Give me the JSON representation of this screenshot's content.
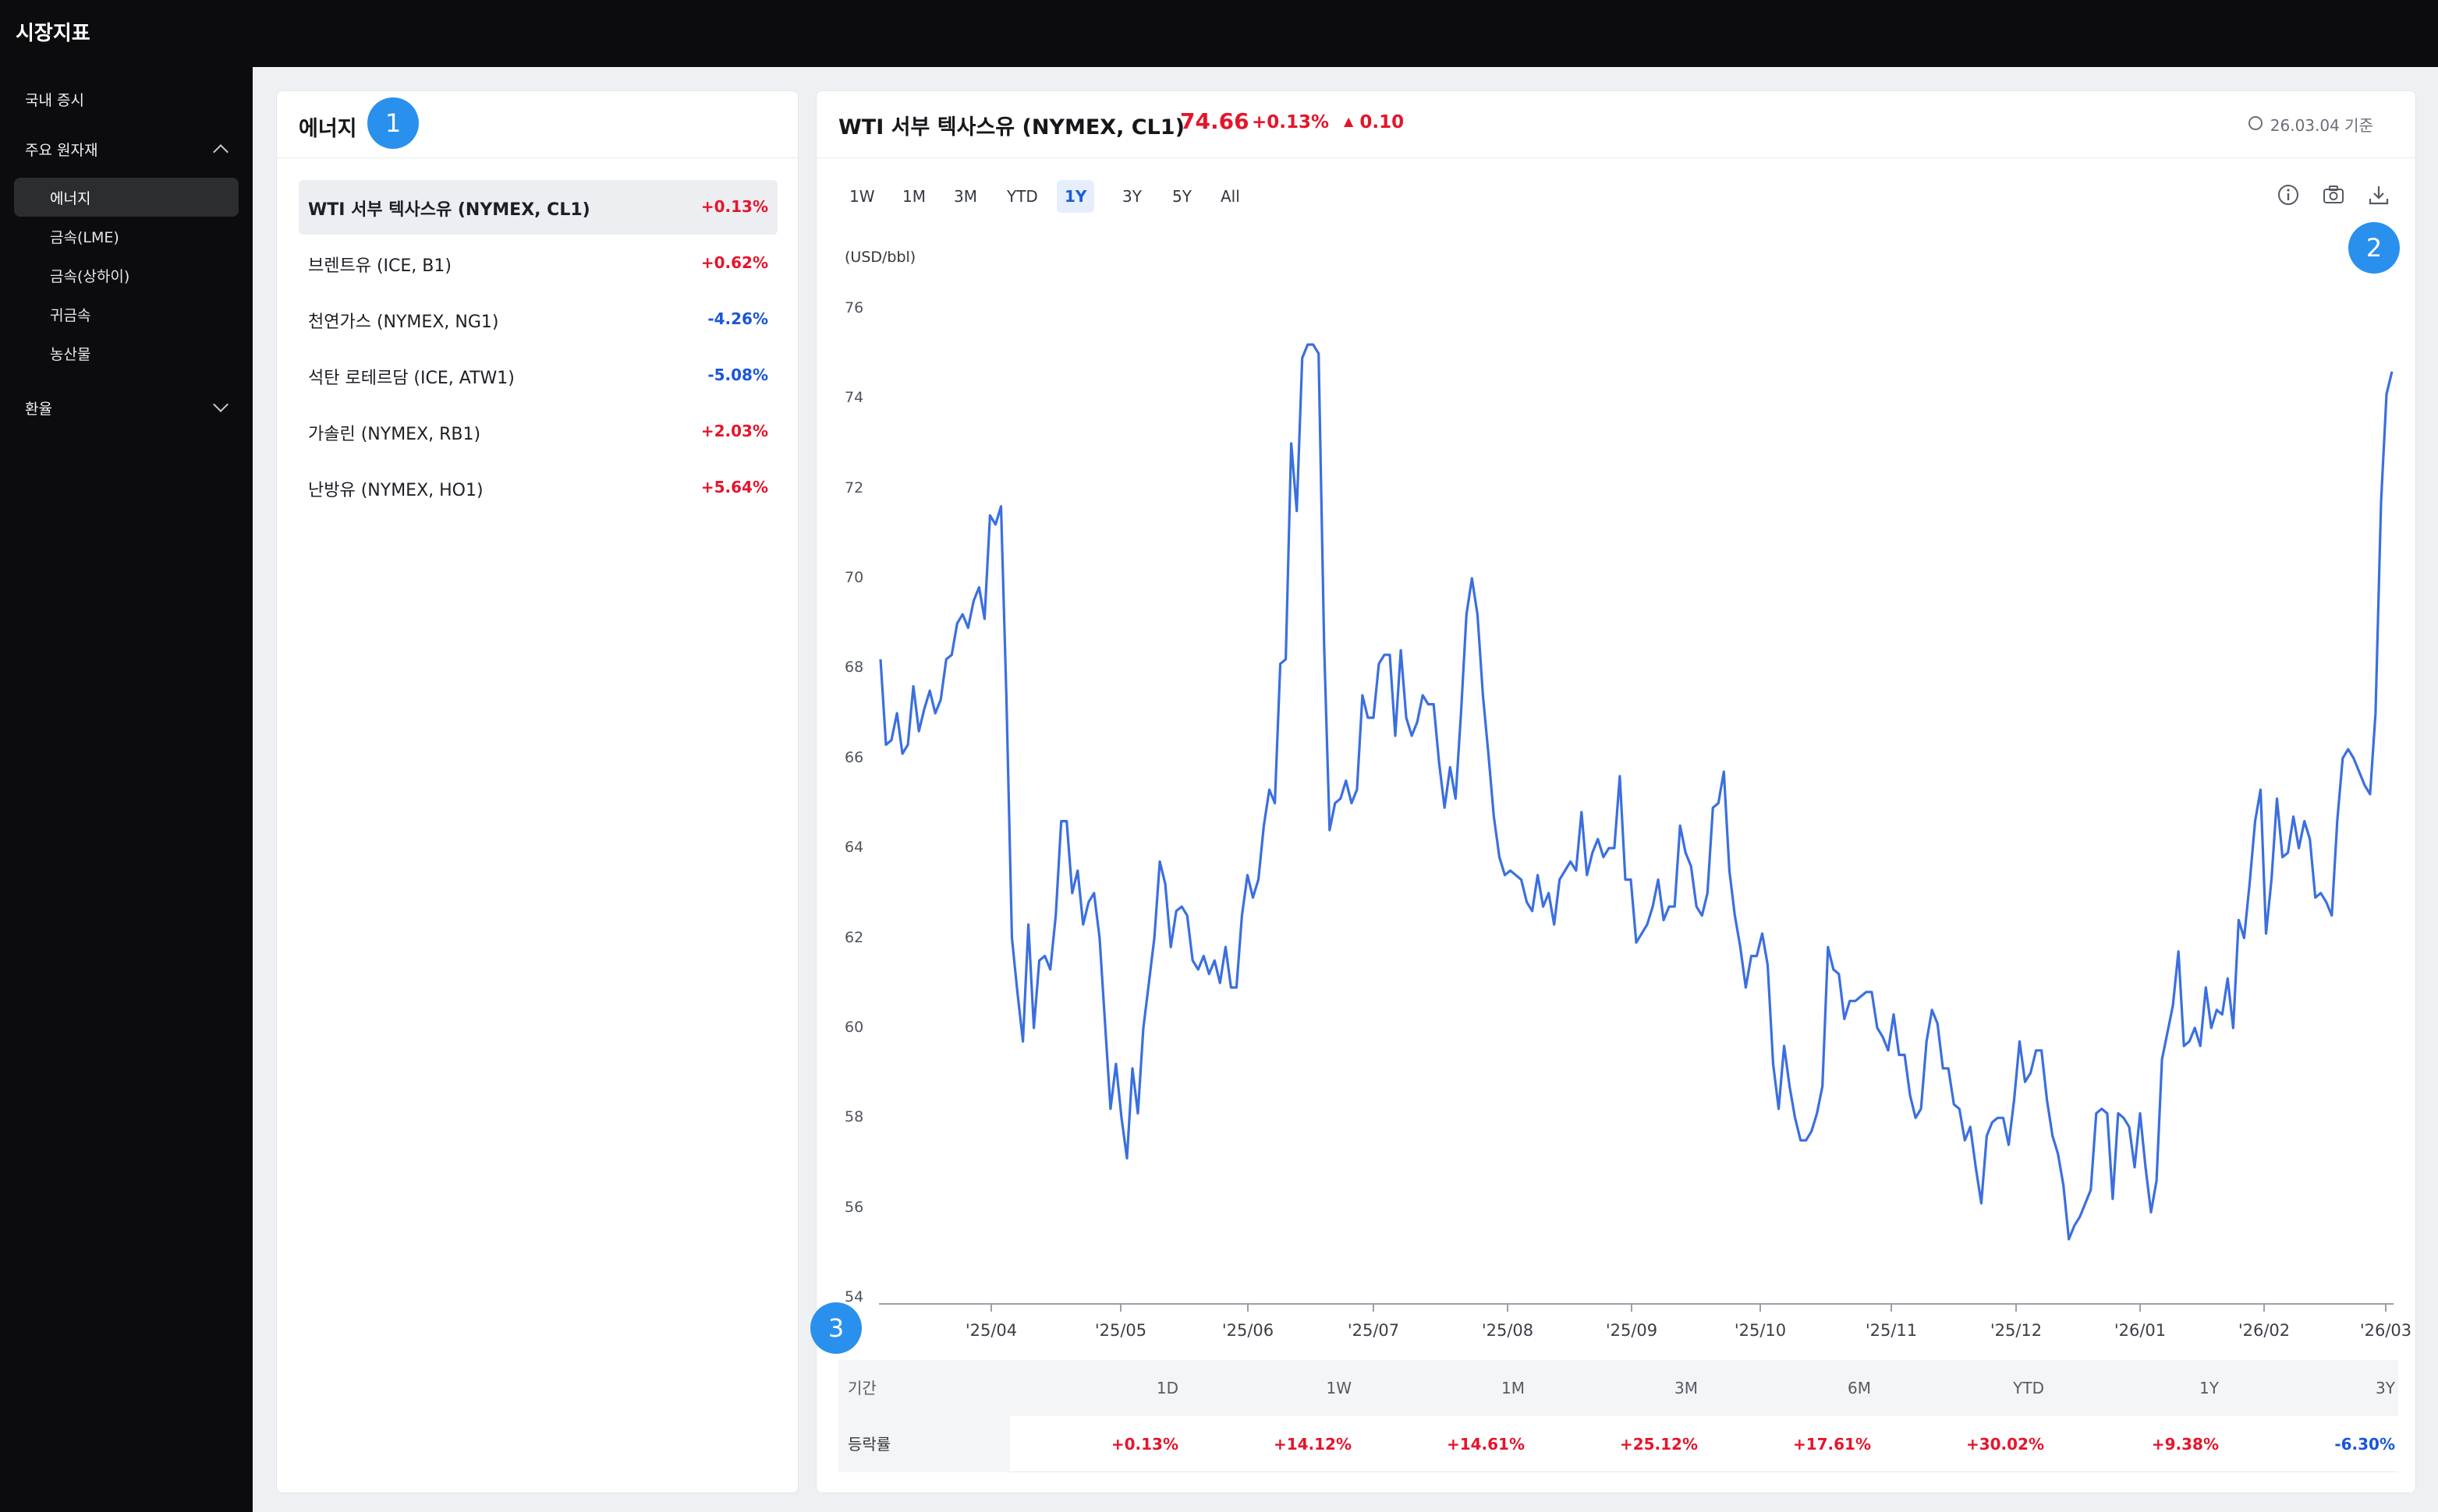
{
  "app": {
    "title": "시장지표"
  },
  "sidebar": {
    "items": [
      {
        "label": "국내 증시"
      },
      {
        "label": "주요 원자재",
        "children": [
          "에너지",
          "금속(LME)",
          "금속(상하이)",
          "귀금속",
          "농산물"
        ]
      },
      {
        "label": "환율"
      }
    ]
  },
  "energy_panel": {
    "title": "에너지",
    "items": [
      {
        "name": "WTI 서부 텍사스유 (NYMEX, CL1)",
        "change": "+0.13%",
        "dir": "up"
      },
      {
        "name": "브렌트유 (ICE, B1)",
        "change": "+0.62%",
        "dir": "up"
      },
      {
        "name": "천연가스 (NYMEX, NG1)",
        "change": "-4.26%",
        "dir": "down"
      },
      {
        "name": "석탄 로테르담 (ICE, ATW1)",
        "change": "-5.08%",
        "dir": "down"
      },
      {
        "name": "가솔린 (NYMEX, RB1)",
        "change": "+2.03%",
        "dir": "up"
      },
      {
        "name": "난방유 (NYMEX, HO1)",
        "change": "+5.64%",
        "dir": "up"
      }
    ]
  },
  "chart_header": {
    "title": "WTI 서부 텍사스유 (NYMEX, CL1)",
    "price": "74.66",
    "pct": "+0.13%",
    "delta": "0.10",
    "asof": "26.03.04 기준"
  },
  "ranges": [
    "1W",
    "1M",
    "3M",
    "YTD",
    "1Y",
    "3Y",
    "5Y",
    "All"
  ],
  "active_range": "1Y",
  "markers": [
    "1",
    "2",
    "3"
  ],
  "icons": {
    "info": "info-icon",
    "camera": "camera-icon",
    "download": "download-icon",
    "clock": "clock-icon"
  },
  "colors": {
    "up": "#e5152b",
    "down": "#1a56db",
    "line": "#3b6fe0",
    "marker": "#2a90ee"
  },
  "chart_data": {
    "type": "line",
    "ylabel": "(USD/bbl)",
    "ylim": [
      54,
      76
    ],
    "yticks": [
      76,
      74,
      72,
      70,
      68,
      66,
      64,
      62,
      60,
      58,
      56,
      54
    ],
    "xticks": [
      "'25/04",
      "'25/05",
      "'25/06",
      "'25/07",
      "'25/08",
      "'25/09",
      "'25/10",
      "'25/11",
      "'25/12",
      "'26/01",
      "'26/02",
      "'26/03"
    ],
    "series": [
      {
        "values": [
          68.2,
          66.3,
          66.4,
          67.0,
          66.1,
          66.3,
          67.6,
          66.6,
          67.1,
          67.5,
          67.0,
          67.3,
          68.2,
          68.3,
          69.0,
          69.2,
          68.9,
          69.5,
          69.8,
          69.1,
          71.4,
          71.2,
          71.6,
          67.3,
          62.0,
          60.8,
          59.7,
          62.3,
          60.0,
          61.5,
          61.6,
          61.3,
          62.5,
          64.6,
          64.6,
          63.0,
          63.5,
          62.3,
          62.8,
          63.0,
          62.0,
          60.1,
          58.2,
          59.2,
          58.0,
          57.1,
          59.1,
          58.1,
          60.0,
          61.0,
          62.0,
          63.7,
          63.2,
          61.8,
          62.6,
          62.7,
          62.5,
          61.5,
          61.3,
          61.6,
          61.2,
          61.5,
          61.0,
          61.8,
          60.9,
          60.9,
          62.5,
          63.4,
          62.9,
          63.3,
          64.5,
          65.3,
          65.0,
          68.1,
          68.2,
          73.0,
          71.5,
          74.9,
          75.2,
          75.2,
          75.0,
          68.5,
          64.4,
          65.0,
          65.1,
          65.5,
          65.0,
          65.3,
          67.4,
          66.9,
          66.9,
          68.1,
          68.3,
          68.3,
          66.5,
          68.4,
          66.9,
          66.5,
          66.8,
          67.4,
          67.2,
          67.2,
          65.9,
          64.9,
          65.8,
          65.1,
          67.0,
          69.2,
          70.0,
          69.2,
          67.4,
          66.1,
          64.7,
          63.8,
          63.4,
          63.5,
          63.4,
          63.3,
          62.8,
          62.6,
          63.4,
          62.7,
          63.0,
          62.3,
          63.3,
          63.5,
          63.7,
          63.5,
          64.8,
          63.4,
          63.9,
          64.2,
          63.8,
          64.0,
          64.0,
          65.6,
          63.3,
          63.3,
          61.9,
          62.1,
          62.3,
          62.7,
          63.3,
          62.4,
          62.7,
          62.7,
          64.5,
          63.9,
          63.6,
          62.7,
          62.5,
          63.0,
          64.9,
          65.0,
          65.7,
          63.5,
          62.5,
          61.8,
          60.9,
          61.6,
          61.6,
          62.1,
          61.4,
          59.2,
          58.2,
          59.6,
          58.7,
          58.0,
          57.5,
          57.5,
          57.7,
          58.1,
          58.7,
          61.8,
          61.3,
          61.2,
          60.2,
          60.6,
          60.6,
          60.7,
          60.8,
          60.8,
          60.0,
          59.8,
          59.5,
          60.3,
          59.4,
          59.4,
          58.5,
          58.0,
          58.2,
          59.7,
          60.4,
          60.1,
          59.1,
          59.1,
          58.3,
          58.2,
          57.5,
          57.8,
          56.9,
          56.1,
          57.6,
          57.9,
          58.0,
          58.0,
          57.4,
          58.4,
          59.7,
          58.8,
          59.0,
          59.5,
          59.5,
          58.4,
          57.6,
          57.2,
          56.5,
          55.3,
          55.6,
          55.8,
          56.1,
          56.4,
          58.1,
          58.2,
          58.1,
          56.2,
          58.1,
          58.0,
          57.8,
          56.9,
          58.1,
          56.9,
          55.9,
          56.6,
          59.3,
          59.9,
          60.5,
          61.7,
          59.6,
          59.7,
          60.0,
          59.6,
          60.9,
          60.0,
          60.4,
          60.3,
          61.1,
          60.0,
          62.4,
          62.0,
          63.2,
          64.6,
          65.3,
          62.1,
          63.3,
          65.1,
          63.8,
          63.9,
          64.7,
          64.0,
          64.6,
          64.2,
          62.9,
          63.0,
          62.8,
          62.5,
          64.6,
          66.0,
          66.2,
          66.0,
          65.7,
          65.4,
          65.2,
          67.0,
          71.7,
          74.1,
          74.6
        ]
      }
    ]
  },
  "returns_table": {
    "header_label": "기간",
    "row_label": "등락률",
    "periods": [
      "1D",
      "1W",
      "1M",
      "3M",
      "6M",
      "YTD",
      "1Y",
      "3Y"
    ],
    "values": [
      {
        "v": "+0.13%",
        "dir": "up"
      },
      {
        "v": "+14.12%",
        "dir": "up"
      },
      {
        "v": "+14.61%",
        "dir": "up"
      },
      {
        "v": "+25.12%",
        "dir": "up"
      },
      {
        "v": "+17.61%",
        "dir": "up"
      },
      {
        "v": "+30.02%",
        "dir": "up"
      },
      {
        "v": "+9.38%",
        "dir": "up"
      },
      {
        "v": "-6.30%",
        "dir": "down"
      }
    ]
  }
}
